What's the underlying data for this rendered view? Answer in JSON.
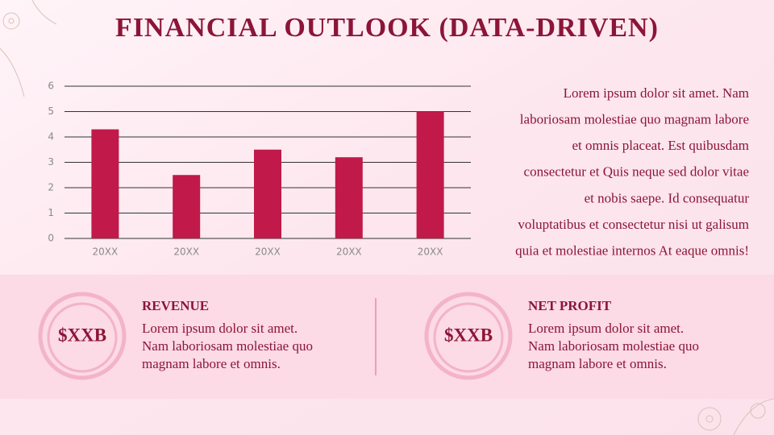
{
  "title": "FINANCIAL OUTLOOK (DATA-DRIVEN)",
  "chart_data": {
    "type": "bar",
    "categories": [
      "20XX",
      "20XX",
      "20XX",
      "20XX",
      "20XX"
    ],
    "values": [
      4.3,
      2.5,
      3.5,
      3.2,
      5
    ],
    "color": "#c0194a",
    "ylim": [
      0,
      6
    ],
    "yticks": [
      0,
      1,
      2,
      3,
      4,
      5,
      6
    ],
    "grid": true
  },
  "paragraph": [
    "Lorem ipsum dolor sit amet. Nam",
    "laboriosam molestiae quo magnam labore",
    "et omnis placeat. Est quibusdam",
    "consectetur et Quis neque sed dolor vitae",
    "et nobis saepe. Id consequatur",
    "voluptatibus et consectetur nisi ut galisum",
    "quia et molestiae internos At eaque omnis!"
  ],
  "cards": [
    {
      "value": "$XXB",
      "heading": "REVENUE",
      "body": [
        "Lorem ipsum dolor sit amet.",
        "Nam laboriosam molestiae quo",
        "magnam labore et omnis."
      ]
    },
    {
      "value": "$XXB",
      "heading": "NET PROFIT",
      "body": [
        "Lorem ipsum dolor sit amet.",
        "Nam laboriosam molestiae quo",
        "magnam labore et omnis."
      ]
    }
  ]
}
